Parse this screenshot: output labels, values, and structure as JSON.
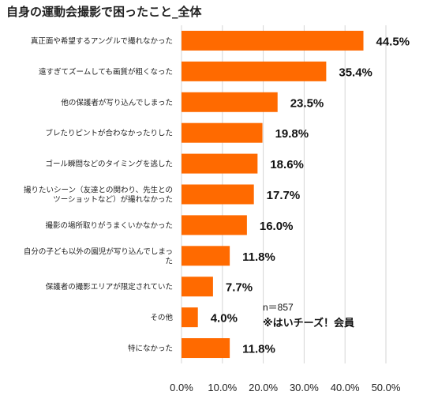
{
  "chart_data": {
    "type": "bar",
    "orientation": "horizontal",
    "title": "自身の運動会撮影で困ったこと_全体",
    "categories": [
      [
        "真正面や希望するアングルで撮れなかった"
      ],
      [
        "遠すぎてズームしても画質が粗くなった"
      ],
      [
        "他の保護者が写り込んでしまった"
      ],
      [
        "ブレたりピントが合わなかったりした"
      ],
      [
        "ゴール瞬間などのタイミングを逃した"
      ],
      [
        "撮りたいシーン（友達との関わり、先生との",
        "ツーショットなど）が撮れなかった"
      ],
      [
        "撮影の場所取りがうまくいかなかった"
      ],
      [
        "自分の子ども以外の園児が写り込んでしまっ",
        "た"
      ],
      [
        "保護者の撮影エリアが限定されていた"
      ],
      [
        "その他"
      ],
      [
        "特になかった"
      ]
    ],
    "values": [
      44.5,
      35.4,
      23.5,
      19.8,
      18.6,
      17.7,
      16.0,
      11.8,
      7.7,
      4.0,
      11.8
    ],
    "value_labels": [
      "44.5%",
      "35.4%",
      "23.5%",
      "19.8%",
      "18.6%",
      "17.7%",
      "16.0%",
      "11.8%",
      "7.7%",
      "4.0%",
      "11.8%"
    ],
    "xlim": [
      0,
      50
    ],
    "ticks": [
      "0.0%",
      "10.0%",
      "20.0%",
      "30.0%",
      "40.0%",
      "50.0%"
    ],
    "grid": true,
    "bar_color": "#ff6a00",
    "annotations": [
      "n＝857",
      "※はいチーズ！会員"
    ]
  }
}
